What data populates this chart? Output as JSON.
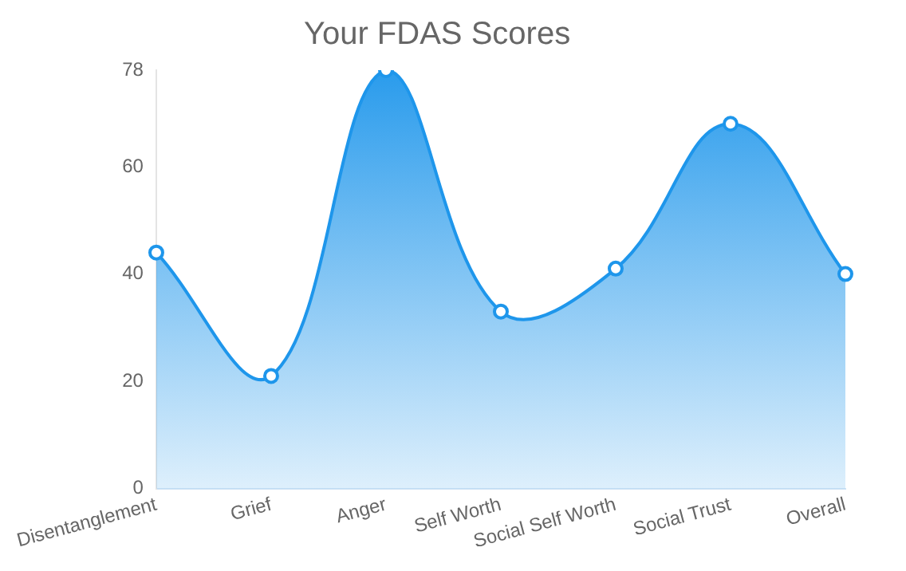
{
  "chart_data": {
    "type": "area",
    "title": "Your FDAS Scores",
    "categories": [
      "Disentanglement",
      "Grief",
      "Anger",
      "Self Worth",
      "Social Self Worth",
      "Social Trust",
      "Overall"
    ],
    "series": [
      {
        "color": "#1e96eb",
        "values": [
          44,
          21,
          78,
          33,
          41,
          68,
          40
        ]
      }
    ],
    "ylim": [
      0,
      78
    ],
    "yticks": [
      0,
      20,
      40,
      60,
      78
    ],
    "grid": false,
    "legend": false,
    "marker": "circle"
  }
}
